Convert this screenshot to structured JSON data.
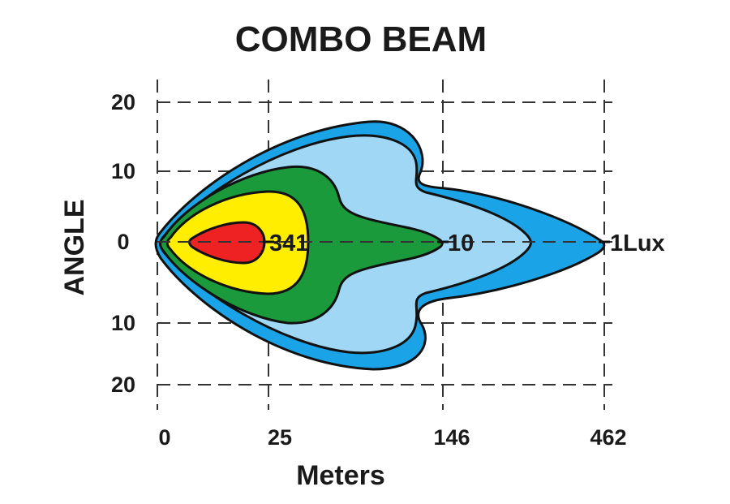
{
  "chart_data": {
    "type": "area",
    "title": "COMBO  BEAM",
    "xlabel": "Meters",
    "ylabel": "ANGLE",
    "x_ticks": [
      "0",
      "25",
      "146",
      "462"
    ],
    "y_ticks": [
      "20",
      "10",
      "0",
      "10",
      "20"
    ],
    "grid": true,
    "zones": [
      {
        "name": "1Lux",
        "label": "1Lux",
        "color": "#1aa3e6",
        "reach_tick": "462",
        "max_angle": 17
      },
      {
        "name": "10",
        "label": "10",
        "color": "#9fd7f5",
        "reach_tick": "146",
        "max_angle": 14
      },
      {
        "name": "zone-green",
        "label": "",
        "color": "#1a9a3a",
        "reach_tick": "146",
        "max_angle": 10
      },
      {
        "name": "zone-yellow",
        "label": "",
        "color": "#ffee00",
        "reach_tick": "25",
        "max_angle": 7
      },
      {
        "name": "341",
        "label": "341",
        "color": "#ee2222",
        "reach_tick": "25",
        "max_angle": 2.5
      }
    ]
  }
}
